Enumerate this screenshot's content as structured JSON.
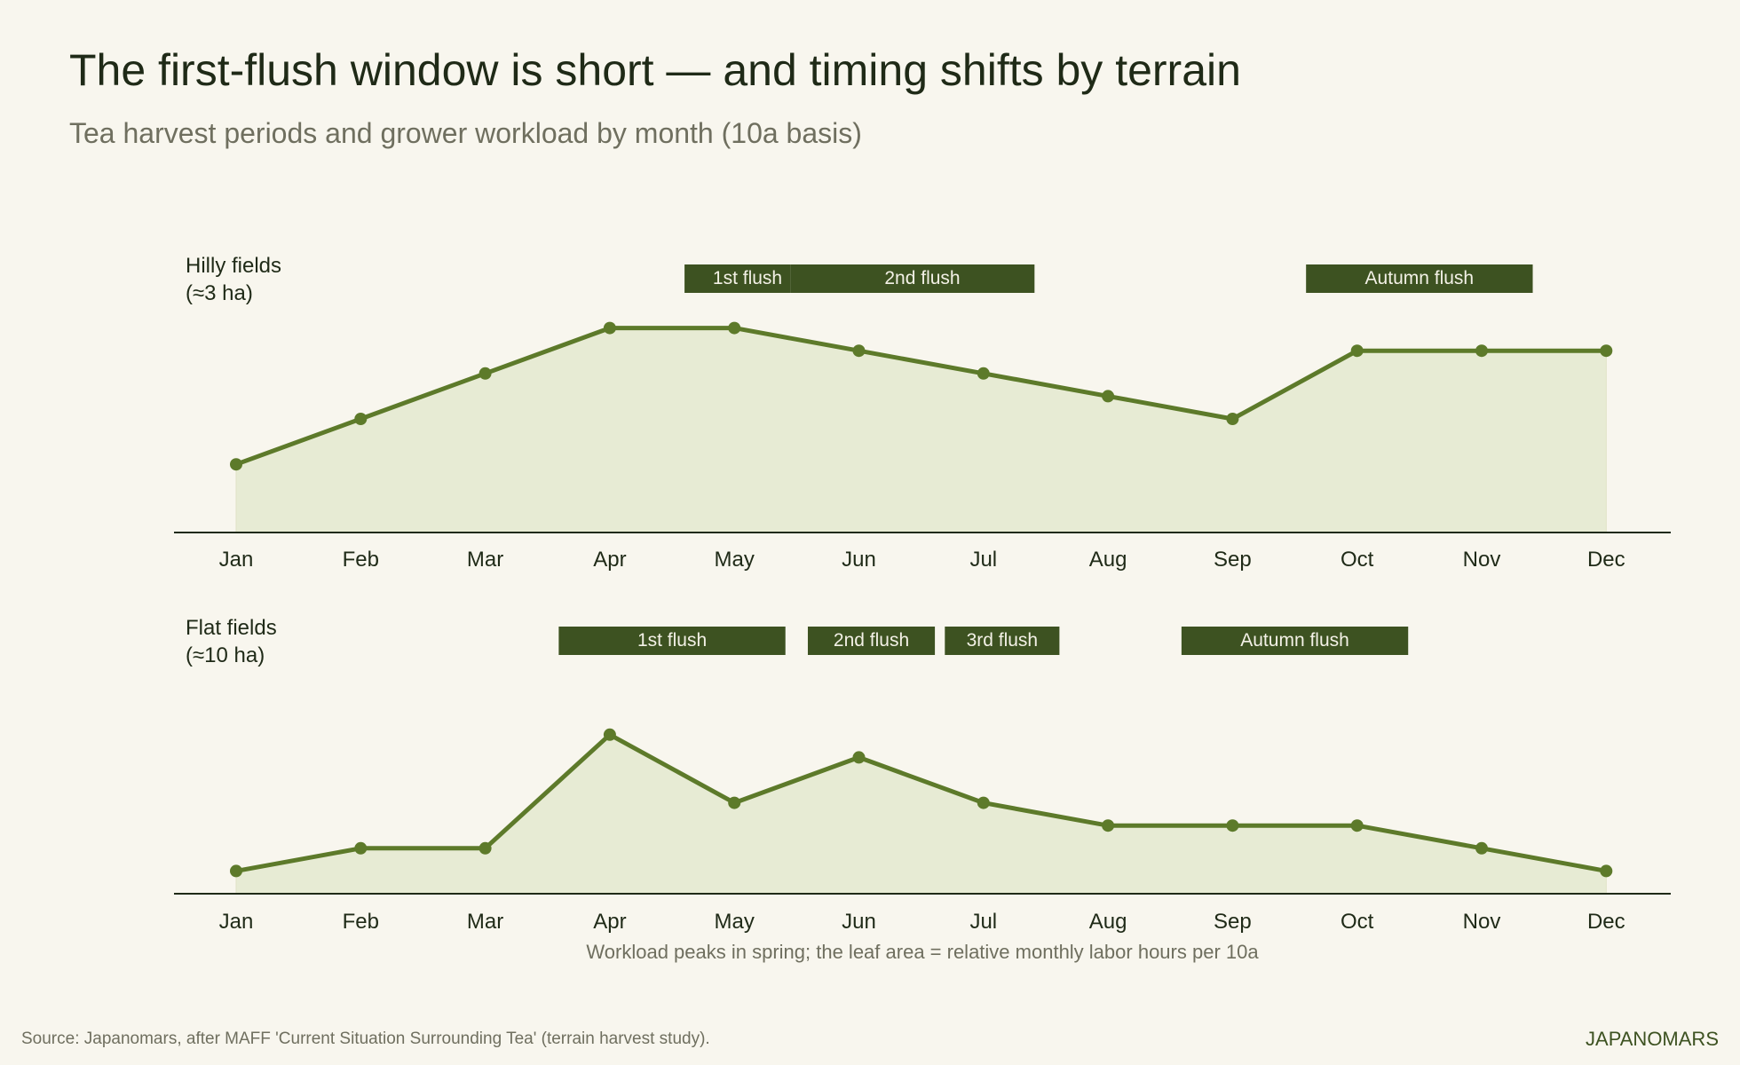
{
  "header": {
    "title": "The first-flush window is short — and timing shifts by terrain",
    "subtitle": "Tea harvest periods and grower workload by month (10a basis)"
  },
  "note": "Workload peaks in spring; the leaf area = relative monthly labor hours per 10a",
  "source": "Source: Japanomars, after MAFF 'Current Situation Surrounding Tea' (terrain harvest study).",
  "brand": "JAPANOMARS",
  "colors": {
    "background": "#f8f6ee",
    "line": "#5d7a2a",
    "area": "#e7ebd4",
    "band": "#3d5221",
    "band_text": "#f3f1e6",
    "axis": "#1f2a17"
  },
  "chart_data": [
    {
      "type": "area",
      "panel_label": [
        "Hilly fields",
        "(≈3 ha)"
      ],
      "categories": [
        "Jan",
        "Feb",
        "Mar",
        "Apr",
        "May",
        "Jun",
        "Jul",
        "Aug",
        "Sep",
        "Oct",
        "Nov",
        "Dec"
      ],
      "values": [
        3,
        5,
        7,
        9,
        9,
        8,
        7,
        6,
        5,
        8,
        8,
        8
      ],
      "ylim": [
        0,
        10
      ],
      "harvest_periods": [
        {
          "label": "1st flush",
          "start_month": 4.6,
          "end_month": 5.45
        },
        {
          "label": "2nd flush",
          "start_month": 5.45,
          "end_month": 7.41
        },
        {
          "label": "Autumn flush",
          "start_month": 9.59,
          "end_month": 11.41
        }
      ]
    },
    {
      "type": "area",
      "panel_label": [
        "Flat fields",
        "(≈10 ha)"
      ],
      "categories": [
        "Jan",
        "Feb",
        "Mar",
        "Apr",
        "May",
        "Jun",
        "Jul",
        "Aug",
        "Sep",
        "Oct",
        "Nov",
        "Dec"
      ],
      "values": [
        1,
        2,
        2,
        7,
        4,
        6,
        4,
        3,
        3,
        3,
        2,
        1
      ],
      "ylim": [
        0,
        10
      ],
      "harvest_periods": [
        {
          "label": "1st flush",
          "start_month": 3.59,
          "end_month": 5.41
        },
        {
          "label": "2nd flush",
          "start_month": 5.59,
          "end_month": 6.61
        },
        {
          "label": "3rd flush",
          "start_month": 6.69,
          "end_month": 7.61
        },
        {
          "label": "Autumn flush",
          "start_month": 8.59,
          "end_month": 10.41
        }
      ]
    }
  ]
}
